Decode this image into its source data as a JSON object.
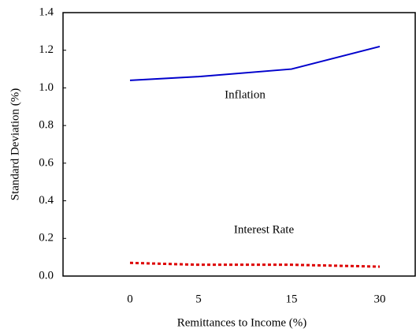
{
  "chart_data": {
    "type": "line",
    "x_label": "Remittances to Income (%)",
    "y_label": "Standard Deviation (%)",
    "categories": [
      "0",
      "5",
      "15",
      "30"
    ],
    "series": [
      {
        "name": "Inflation",
        "color": "#0000cc",
        "style": "solid",
        "values": [
          1.04,
          1.06,
          1.1,
          1.22
        ]
      },
      {
        "name": "Interest Rate",
        "color": "#dd0000",
        "style": "dotted",
        "values": [
          0.07,
          0.06,
          0.06,
          0.05
        ]
      }
    ],
    "ylim": [
      0,
      1.4
    ],
    "yticks": [
      {
        "value": 0,
        "label": "0.0"
      },
      0.2,
      0.4,
      0.6,
      0.8,
      {
        "value": 1,
        "label": "1.0"
      },
      1.2,
      1.4
    ],
    "grid": false
  }
}
